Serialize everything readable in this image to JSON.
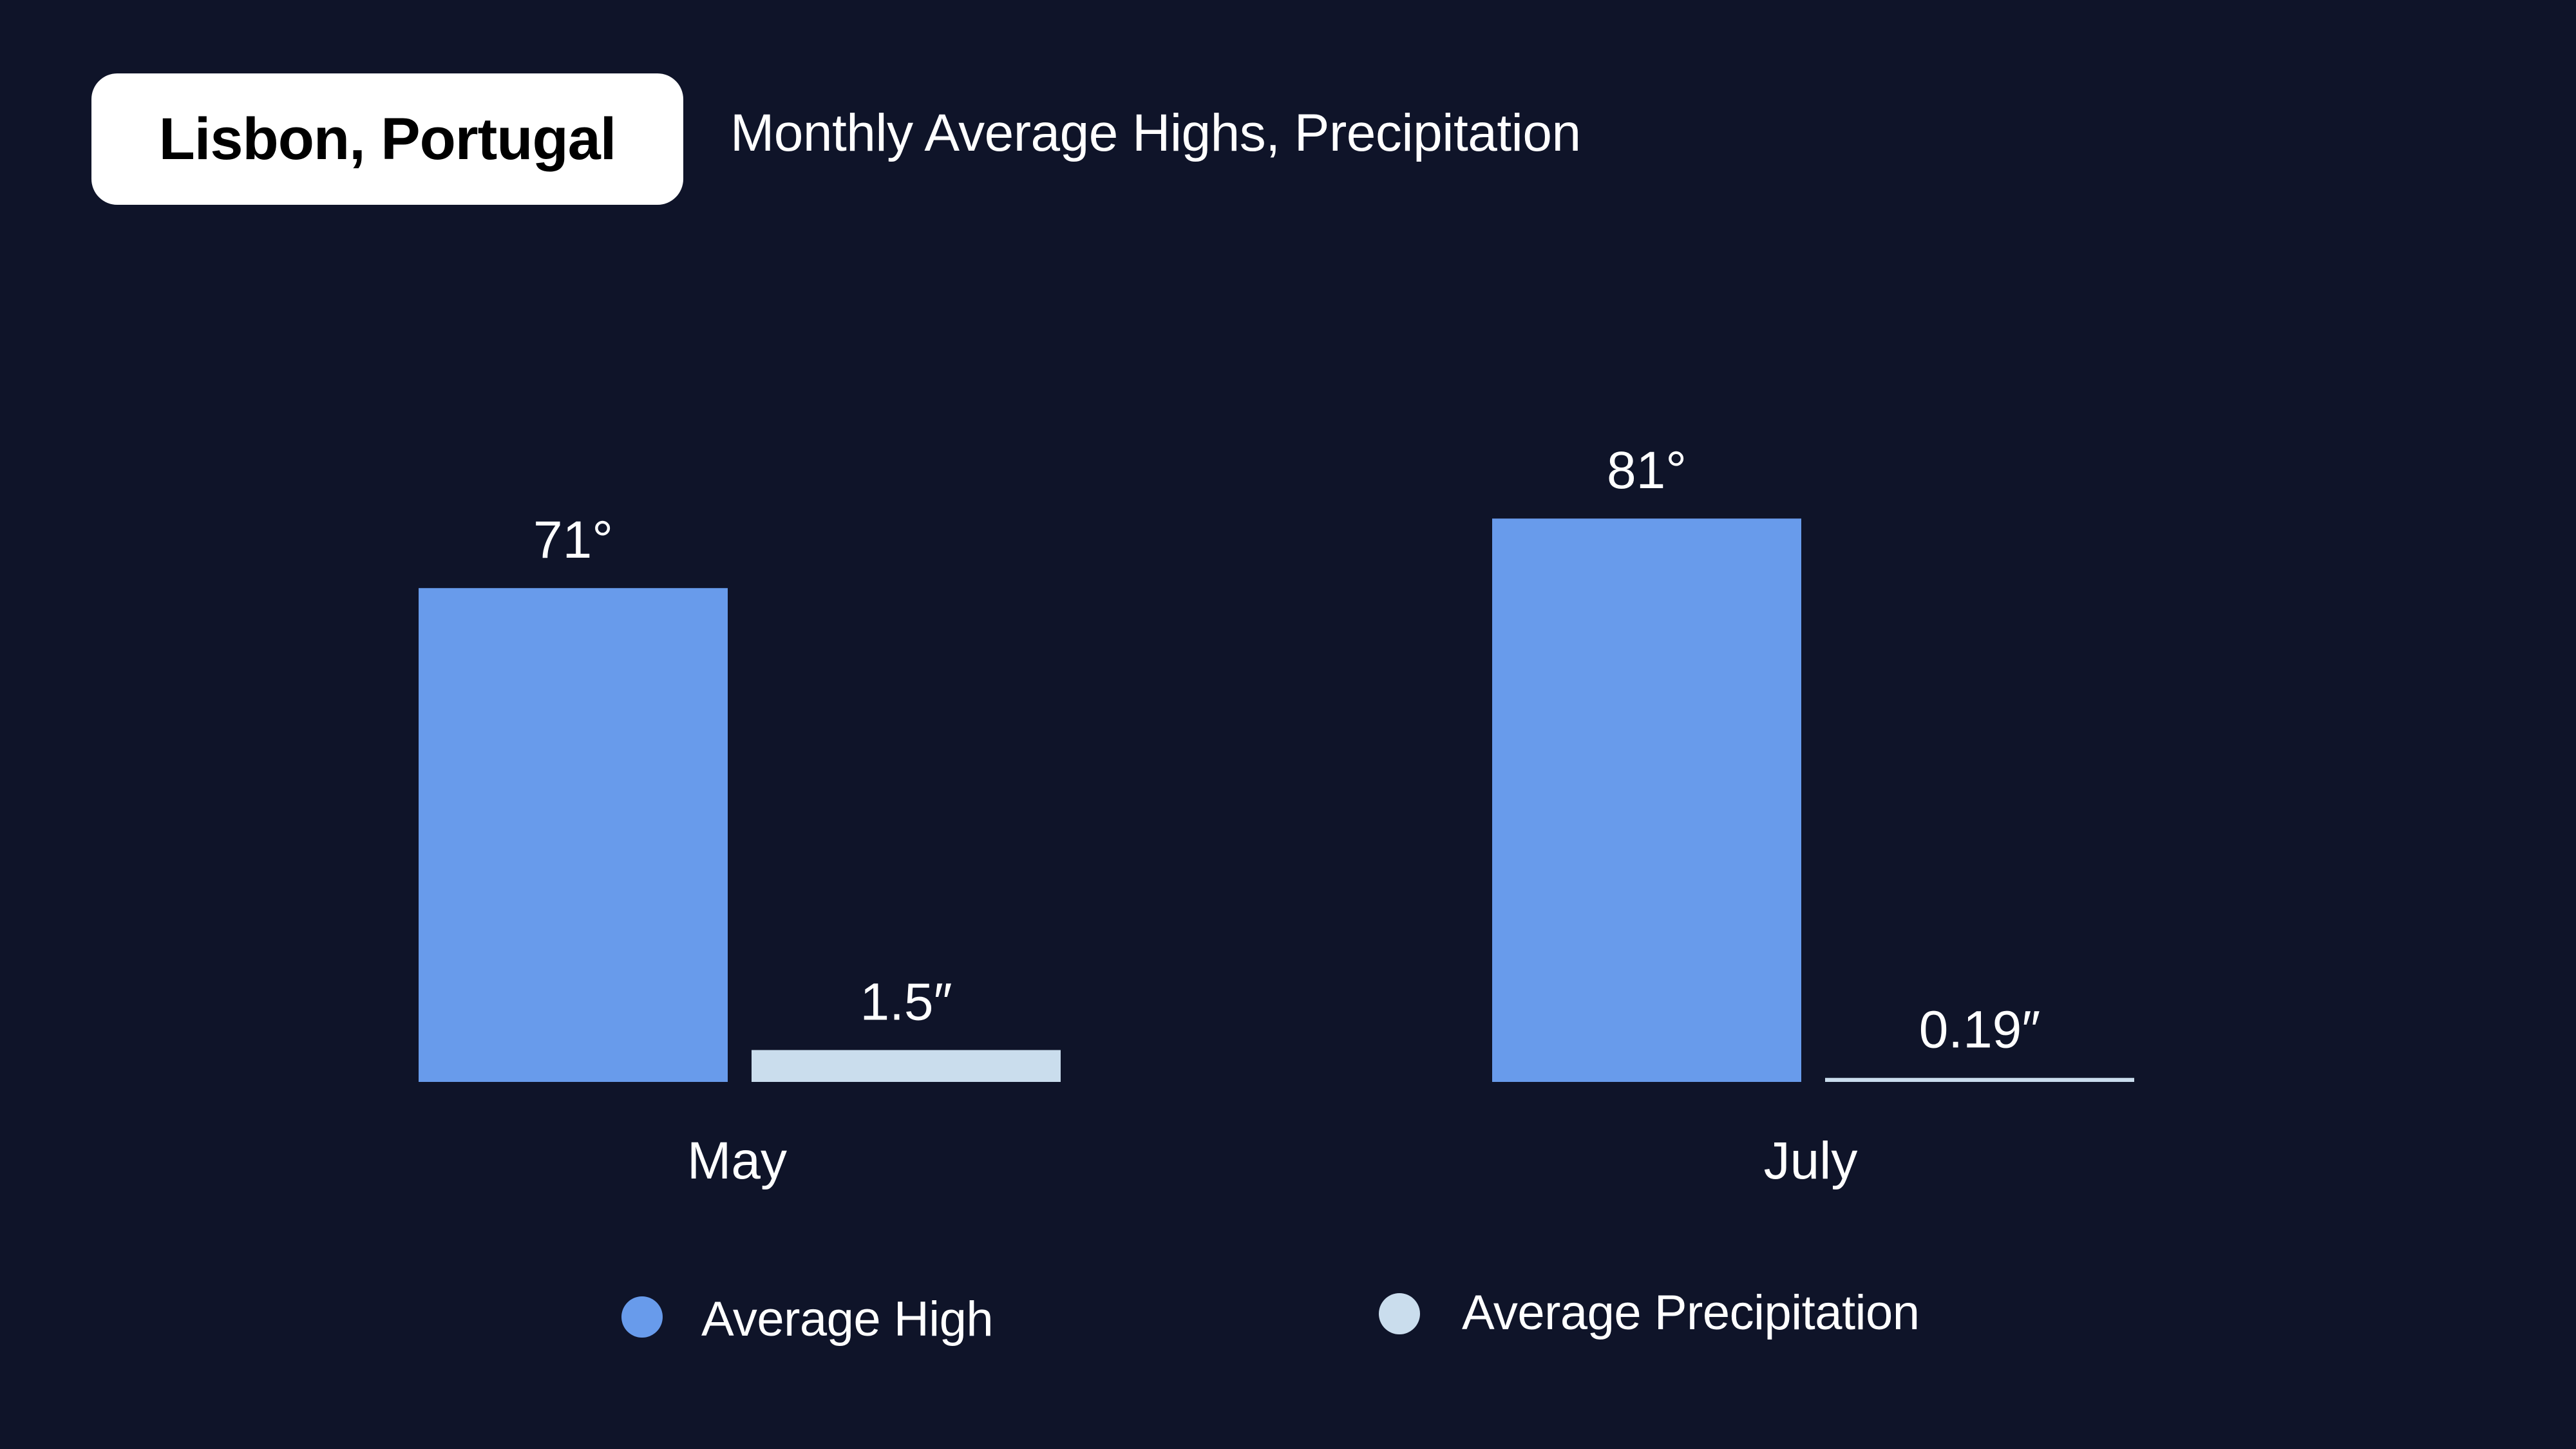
{
  "header": {
    "title": "Lisbon, Portugal",
    "subtitle": "Monthly Average Highs, Precipitation"
  },
  "colors": {
    "background": "#0f1429",
    "average_high": "#689beb",
    "average_precipitation": "#cadded",
    "text": "#ffffff",
    "title_badge_bg": "#ffffff",
    "title_badge_text": "#000000"
  },
  "chart_data": {
    "type": "bar",
    "title": "Lisbon, Portugal",
    "subtitle": "Monthly Average Highs, Precipitation",
    "categories": [
      "May",
      "July"
    ],
    "series": [
      {
        "name": "Average High",
        "unit": "°F",
        "values": [
          71,
          81
        ],
        "labels": [
          "71°",
          "81°"
        ],
        "color": "#689beb"
      },
      {
        "name": "Average Precipitation",
        "unit": "in",
        "values": [
          1.5,
          0.19
        ],
        "labels": [
          "1.5″",
          "0.19″"
        ],
        "color": "#cadded"
      }
    ],
    "xlabel": "",
    "ylabel": "",
    "grid": false,
    "axes_visible": false,
    "legend": {
      "position": "bottom-center",
      "entries": [
        "Average High",
        "Average Precipitation"
      ]
    }
  }
}
